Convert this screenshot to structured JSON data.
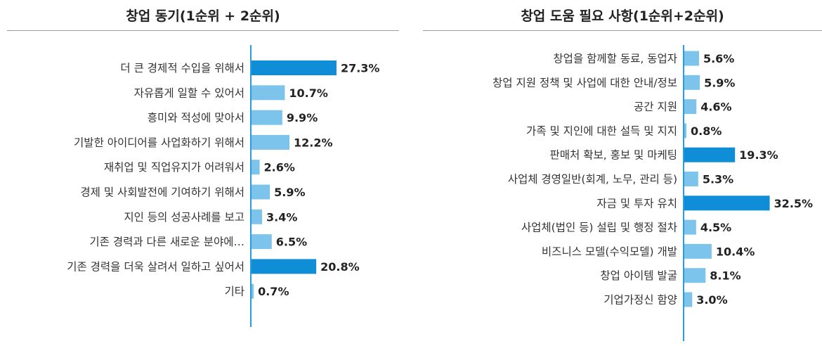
{
  "colors": {
    "highlight": "#0f8dd6",
    "normal": "#7cc4ec",
    "axis": "#2b9be0"
  },
  "chart_data": [
    {
      "type": "bar",
      "orientation": "horizontal",
      "title": "창업 동기(1순위 + 2순위)",
      "unit": "%",
      "categories": [
        "더 큰 경제적 수입을 위해서",
        "자유롭게 일할 수 있어서",
        "흥미와 적성에 맞아서",
        "기발한 아이디어를 사업화하기 위해서",
        "재취업 및 직업유지가 어려워서",
        "경제 및 사회발전에 기여하기 위해서",
        "지인 등의 성공사례를 보고",
        "기존 경력과 다른 새로운 분야에…",
        "기존 경력을 더욱 살려서 일하고 싶어서",
        "기타"
      ],
      "values": [
        27.3,
        10.7,
        9.9,
        12.2,
        2.6,
        5.9,
        3.4,
        6.5,
        20.8,
        0.7
      ],
      "value_labels": [
        "27.3%",
        "10.7%",
        "9.9%",
        "12.2%",
        "2.6%",
        "5.9%",
        "3.4%",
        "6.5%",
        "20.8%",
        "0.7%"
      ],
      "highlighted": [
        0,
        8
      ]
    },
    {
      "type": "bar",
      "orientation": "horizontal",
      "title": "창업 도움 필요 사항(1순위+2순위)",
      "unit": "%",
      "categories": [
        "창업을 함께할 동료, 동업자",
        "창업 지원 정책 및 사업에 대한 안내/정보",
        "공간 지원",
        "가족 및 지인에 대한 설득 및 지지",
        "판매처 확보, 홍보 및 마케팅",
        "사업체 경영일반(회계, 노무, 관리 등)",
        "자금 및 투자 유치",
        "사업체(법인 등) 설립 및 행정 절차",
        "비즈니스 모델(수익모델) 개발",
        "창업 아이템 발굴",
        "기업가정신 함양"
      ],
      "values": [
        5.6,
        5.9,
        4.6,
        0.8,
        19.3,
        5.3,
        32.5,
        4.5,
        10.4,
        8.1,
        3.0
      ],
      "value_labels": [
        "5.6%",
        "5.9%",
        "4.6%",
        "0.8%",
        "19.3%",
        "5.3%",
        "32.5%",
        "4.5%",
        "10.4%",
        "8.1%",
        "3.0%"
      ],
      "highlighted": [
        4,
        6
      ]
    }
  ]
}
